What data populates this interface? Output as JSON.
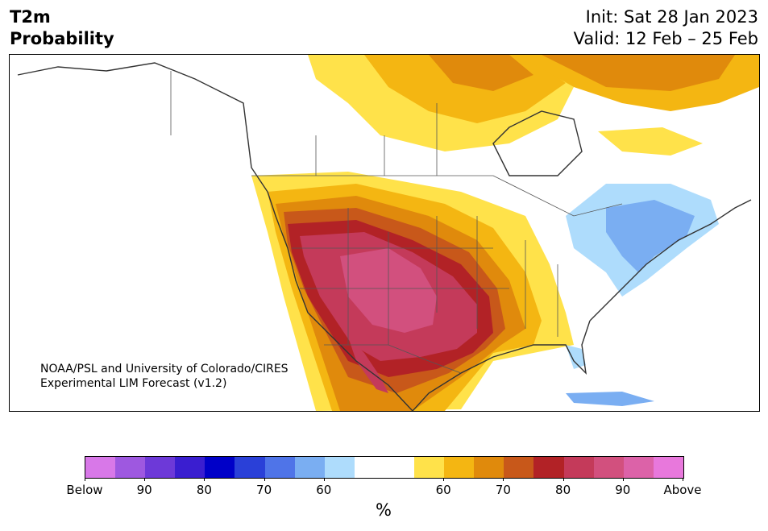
{
  "header": {
    "title_line1": "T2m",
    "title_line2": "Probability",
    "init": "Init: Sat 28 Jan 2023",
    "valid": "Valid: 12 Feb – 25 Feb"
  },
  "map": {
    "credit_line1": "NOAA/PSL and University of Colorado/CIRES",
    "credit_line2": "Experimental LIM Forecast (v1.2)"
  },
  "colorbar": {
    "colors": [
      "#d878e8",
      "#9e58e0",
      "#6d39d8",
      "#3a1ed0",
      "#0000c8",
      "#2a40d8",
      "#4f74e8",
      "#7aaef2",
      "#aedcfc",
      "#ffffff",
      "#ffffff",
      "#ffe24a",
      "#f4b612",
      "#e08a0c",
      "#c8581a",
      "#b22226",
      "#c43a5a",
      "#d2507e",
      "#dc62a8",
      "#e878dc"
    ],
    "ticks": [
      "Below",
      "90",
      "80",
      "70",
      "60",
      "60",
      "70",
      "80",
      "90",
      "Above"
    ],
    "unit": "%"
  },
  "colors": {
    "above_60": "#ffe24a",
    "above_65": "#f4b612",
    "above_70": "#e08a0c",
    "above_75": "#c8581a",
    "above_80": "#b22226",
    "above_85": "#c43a5a",
    "above_90": "#d2507e",
    "below_60": "#aedcfc",
    "below_65": "#7aaef2"
  }
}
